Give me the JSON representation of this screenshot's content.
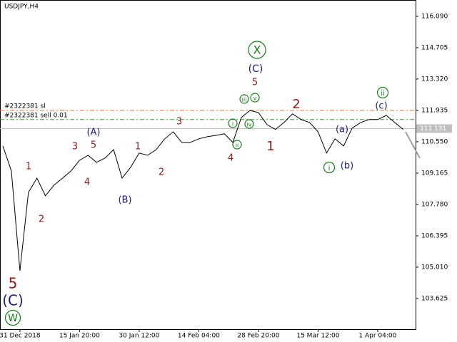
{
  "chart_data": {
    "type": "line",
    "title": "USDJPY,H4",
    "color": "#000000",
    "categories": [
      null,
      null,
      "31 Dec 2018",
      null,
      null,
      null,
      null,
      null,
      null,
      "15 Jan 20:00",
      null,
      null,
      null,
      null,
      null,
      null,
      "30 Jan 12:00",
      null,
      null,
      null,
      null,
      null,
      null,
      "14 Feb 04:00",
      null,
      null,
      null,
      null,
      null,
      null,
      "28 Feb 20:00",
      null,
      null,
      null,
      null,
      null,
      null,
      "15 Mar 12:00",
      null,
      null,
      null,
      null,
      null,
      null,
      "1 Apr 04:00",
      null,
      null,
      null
    ],
    "values": [
      110.36,
      109.26,
      104.85,
      108.31,
      108.94,
      108.16,
      108.63,
      108.94,
      109.26,
      109.73,
      109.95,
      109.64,
      109.83,
      110.2,
      108.94,
      109.42,
      110.05,
      109.95,
      110.2,
      110.68,
      110.99,
      110.52,
      110.52,
      110.68,
      110.77,
      110.83,
      110.9,
      110.52,
      111.62,
      111.93,
      111.84,
      111.31,
      111.09,
      111.4,
      111.78,
      111.53,
      111.4,
      110.99,
      110.05,
      110.68,
      110.36,
      111.15,
      111.4,
      111.53,
      111.53,
      111.71,
      111.4,
      111.09
    ],
    "ylim": [
      102.27,
      116.81
    ],
    "yticks": [
      {
        "value": 116.09,
        "label": "116.090"
      },
      {
        "value": 114.705,
        "label": "114.705"
      },
      {
        "value": 113.32,
        "label": "113.320"
      },
      {
        "value": 111.935,
        "label": "111.935"
      },
      {
        "value": 110.55,
        "label": "110.550"
      },
      {
        "value": 109.165,
        "label": "109.165"
      },
      {
        "value": 107.78,
        "label": "107.780"
      },
      {
        "value": 106.395,
        "label": "106.395"
      },
      {
        "value": 105.01,
        "label": "105.010"
      },
      {
        "value": 103.625,
        "label": "103.625"
      }
    ],
    "current_price": 111.131,
    "levels": [
      {
        "label": "#2322381 sl",
        "value": 111.93,
        "color": "#e07a3a"
      },
      {
        "label": "#2322381 sell 0.01",
        "value": 111.53,
        "color": "#3aa03a"
      }
    ],
    "annotations": [
      {
        "text": "5",
        "color": "#8b1a1a"
      },
      {
        "text": "(C)",
        "color": "#1c1c7a"
      },
      {
        "text": "W",
        "color": "#1a7a1a",
        "circled": true
      },
      {
        "text": "1",
        "color": "#8b1a1a"
      },
      {
        "text": "2",
        "color": "#8b1a1a"
      },
      {
        "text": "3",
        "color": "#8b1a1a"
      },
      {
        "text": "4",
        "color": "#8b1a1a"
      },
      {
        "text": "5",
        "color": "#8b1a1a"
      },
      {
        "text": "(A)",
        "color": "#1c1c7a"
      },
      {
        "text": "(B)",
        "color": "#1c1c7a"
      },
      {
        "text": "1",
        "color": "#8b1a1a"
      },
      {
        "text": "2",
        "color": "#8b1a1a"
      },
      {
        "text": "3",
        "color": "#8b1a1a"
      },
      {
        "text": "4",
        "color": "#8b1a1a"
      },
      {
        "text": "5",
        "color": "#8b1a1a"
      },
      {
        "text": "(C)",
        "color": "#1c1c7a"
      },
      {
        "text": "X",
        "color": "#1a7a1a",
        "circled": true
      },
      {
        "text": "iii",
        "color": "#1a7a1a",
        "circled": true
      },
      {
        "text": "v",
        "color": "#1a7a1a",
        "circled": true
      },
      {
        "text": "i",
        "color": "#1a7a1a",
        "circled": true
      },
      {
        "text": "iv",
        "color": "#1a7a1a",
        "circled": true
      },
      {
        "text": "ii",
        "color": "#1a7a1a",
        "circled": true
      },
      {
        "text": "1",
        "color": "#8b1a1a"
      },
      {
        "text": "2",
        "color": "#8b1a1a"
      },
      {
        "text": "(a)",
        "color": "#1c1c7a"
      },
      {
        "text": "(b)",
        "color": "#1c1c7a"
      },
      {
        "text": "(c)",
        "color": "#1c1c7a"
      },
      {
        "text": "ii",
        "color": "#1a7a1a",
        "circled": true
      },
      {
        "text": "i",
        "color": "#1a7a1a",
        "circled": true
      }
    ]
  }
}
